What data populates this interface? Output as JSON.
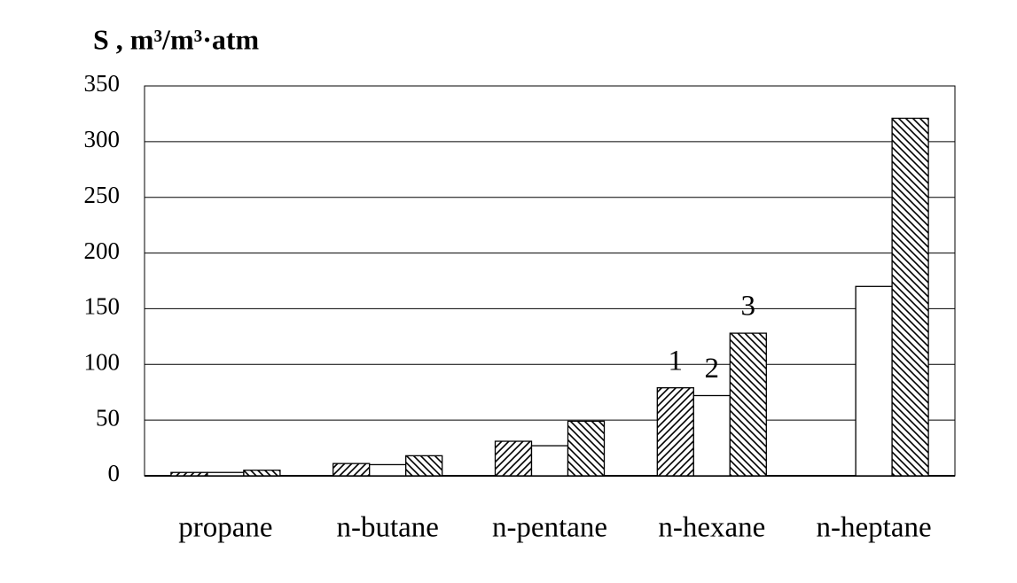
{
  "chart_data": {
    "type": "bar",
    "title": "S , m³/m³·atm",
    "categories": [
      "propane",
      "n-butane",
      "n-pentane",
      "n-hexane",
      "n-heptane"
    ],
    "series": [
      {
        "name": "1",
        "color": "#000000",
        "pattern": "forward",
        "values": [
          3,
          11,
          31,
          79,
          null
        ]
      },
      {
        "name": "2",
        "color": "#000000",
        "pattern": "none",
        "values": [
          3,
          10,
          27,
          72,
          170
        ]
      },
      {
        "name": "3",
        "color": "#000000",
        "pattern": "backward",
        "values": [
          5,
          18,
          49,
          128,
          321
        ]
      }
    ],
    "ylim": [
      0,
      350
    ],
    "yticks": [
      0,
      50,
      100,
      150,
      200,
      250,
      300,
      350
    ],
    "grid": true
  }
}
